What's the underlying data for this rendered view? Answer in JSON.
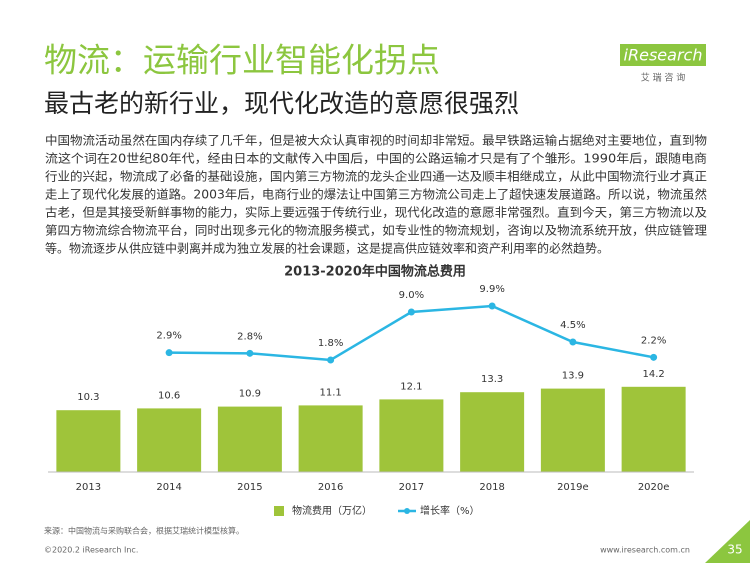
{
  "header": {
    "title": "物流：运输行业智能化拐点",
    "subtitle": "最古老的新行业，现代化改造的意愿很强烈",
    "logo": "iResearch",
    "logo_sub": "艾 瑞 咨 询"
  },
  "paragraph": [
    "中国物流活动虽然在国内存续了几千年，但是被大众认真审视的时间却非常短。最早铁路运输占据绝对主要地位，直到物",
    "流这个词在20世纪80年代，经由日本的文献传入中国后，中国的公路运输才只是有了个雏形。1990年后，跟随电商",
    "行业的兴起，物流成了必备的基础设施，国内第三方物流的龙头企业四通一达及顺丰相继成立，从此中国物流行业才真正",
    "走上了现代化发展的道路。2003年后，电商行业的爆法让中国第三方物流公司走上了超快速发展道路。所以说，物流虽然",
    "古老，但是其接受新鲜事物的能力，实际上要远强于传统行业，现代化改造的意愿非常强烈。直到今天，第三方物流以及",
    "第四方物流综合物流平台，同时出现多元化的物流服务模式，如专业性的物流规划，咨询以及物流系统开放，供应链管理",
    "等。物流逐步从供应链中剥离并成为独立发展的社会课题，这是提高供应链效率和资产利用率的必然趋势。"
  ],
  "chart_data": {
    "type": "bar",
    "title": "2013-2020年中国物流总费用",
    "categories": [
      "2013",
      "2014",
      "2015",
      "2016",
      "2017",
      "2018",
      "2019e",
      "2020e"
    ],
    "series": [
      {
        "name": "物流费用（万亿）",
        "type": "bar",
        "color": "#9fc43a",
        "values": [
          10.3,
          10.6,
          10.9,
          11.1,
          12.1,
          13.3,
          13.9,
          14.2
        ]
      },
      {
        "name": "增长率（%）",
        "type": "line",
        "axis": "y2",
        "color": "#2bb6e3",
        "values": [
          null,
          2.9,
          2.8,
          1.8,
          9.0,
          9.9,
          4.5,
          2.2
        ],
        "value_labels": [
          null,
          "2.9%",
          "2.8%",
          "1.8%",
          "9.0%",
          "9.9%",
          "4.5%",
          "2.2%"
        ]
      }
    ],
    "ylim": [
      0,
      30
    ],
    "y2lim": [
      -15,
      12
    ]
  },
  "source": "来源：中国物流与采购联合会，根据艾瑞统计模型核算。",
  "footer": {
    "copyright": "©2020.2 iResearch Inc.",
    "url": "www.iresearch.com.cn",
    "page": "35"
  }
}
